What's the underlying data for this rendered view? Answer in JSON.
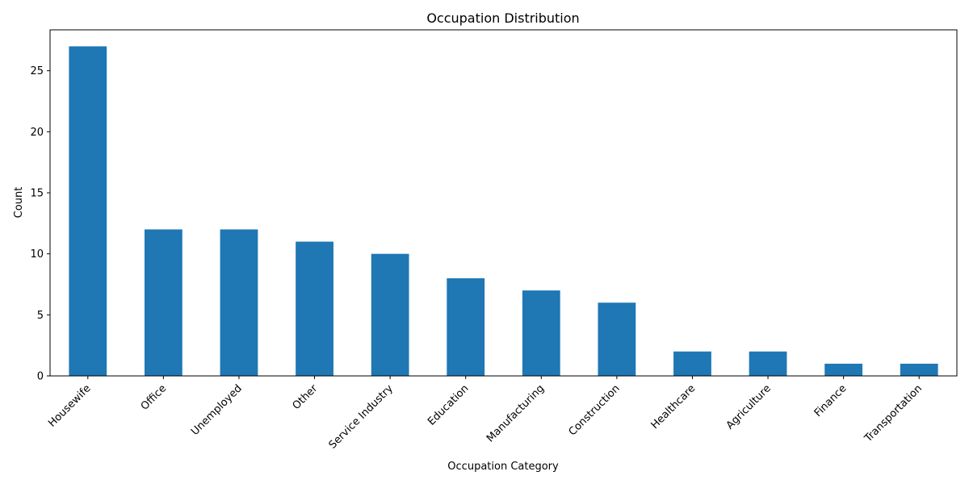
{
  "chart_data": {
    "type": "bar",
    "title": "Occupation Distribution",
    "xlabel": "Occupation Category",
    "ylabel": "Count",
    "categories": [
      "Housewife",
      "Office",
      "Unemployed",
      "Other",
      "Service Industry",
      "Education",
      "Manufacturing",
      "Construction",
      "Healthcare",
      "Agriculture",
      "Finance",
      "Transportation"
    ],
    "values": [
      27,
      12,
      12,
      11,
      10,
      8,
      7,
      6,
      2,
      2,
      1,
      1
    ],
    "ylim": [
      0,
      28.35
    ],
    "yticks": [
      0,
      5,
      10,
      15,
      20,
      25
    ],
    "grid": false,
    "legend": "none",
    "bar_color": "#1f77b4"
  }
}
